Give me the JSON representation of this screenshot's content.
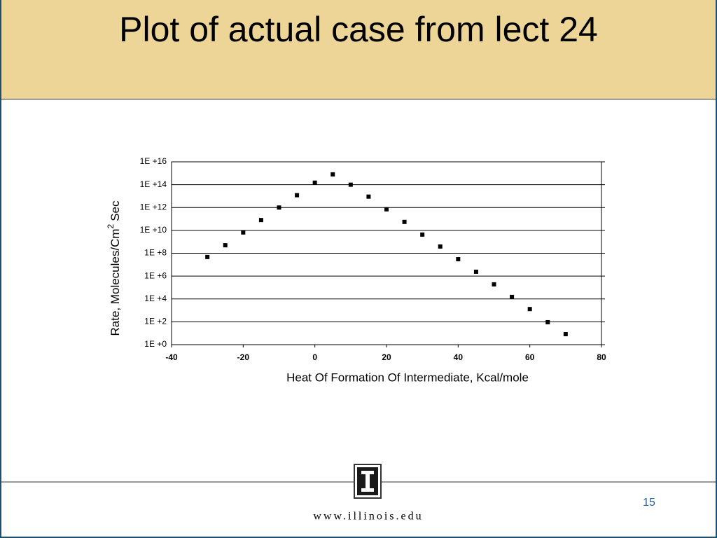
{
  "header": {
    "title": "Plot of actual case from lect 24"
  },
  "chart_data": {
    "type": "scatter",
    "x_label": "Heat Of Formation Of Intermediate, Kcal/mole",
    "y_label": "Rate, Molecules/Cm",
    "y_label_superscript": "2",
    "y_label_suffix": "Sec",
    "x": [
      -30,
      -25,
      -20,
      -15,
      -10,
      -5,
      0,
      5,
      10,
      15,
      20,
      25,
      30,
      35,
      40,
      45,
      50,
      55,
      60,
      65,
      70
    ],
    "values": [
      47000000,
      500000000,
      6600000000,
      80000000000,
      1000000000000,
      12000000000000,
      150000000000000,
      800000000000000,
      100000000000000,
      9000000000000,
      700000000000,
      55000000000,
      4300000000,
      390000000,
      30000000,
      2400000,
      190000,
      15000,
      1300,
      92,
      8.3
    ],
    "color": "#000000",
    "xlim": [
      -40,
      80
    ],
    "xticks": [
      -40,
      -20,
      0,
      20,
      40,
      60,
      80
    ],
    "ylim": [
      1,
      10000000000000000
    ],
    "y_log": true,
    "yticks": [
      {
        "value": 1,
        "label": "1E +0"
      },
      {
        "value": 100,
        "label": "1E +2"
      },
      {
        "value": 10000,
        "label": "1E +4"
      },
      {
        "value": 1000000,
        "label": "1E +6"
      },
      {
        "value": 100000000,
        "label": "1E +8"
      },
      {
        "value": 10000000000,
        "label": "1E +10"
      },
      {
        "value": 1000000000000,
        "label": "1E +12"
      },
      {
        "value": 100000000000000,
        "label": "1E +14"
      },
      {
        "value": 10000000000000000,
        "label": "1E +16"
      }
    ],
    "grid": true
  },
  "footer": {
    "url": "www.illinois.edu",
    "page_number": "15"
  }
}
